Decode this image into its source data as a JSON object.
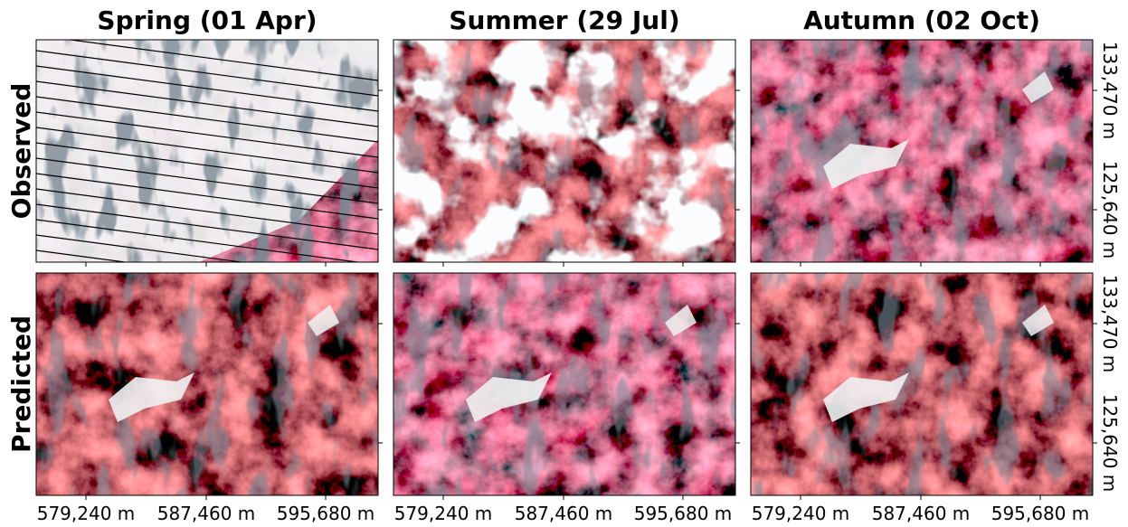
{
  "columns": [
    {
      "title": "Spring (01 Apr)"
    },
    {
      "title": "Summer (29 Jul)"
    },
    {
      "title": "Autumn (02 Oct)"
    }
  ],
  "rows": [
    {
      "label": "Observed"
    },
    {
      "label": "Predicted"
    }
  ],
  "x_tick_labels": [
    "579,240 m",
    "587,460 m",
    "595,680 m"
  ],
  "y_tick_labels": [
    "133,470 m",
    "125,640 m"
  ]
}
